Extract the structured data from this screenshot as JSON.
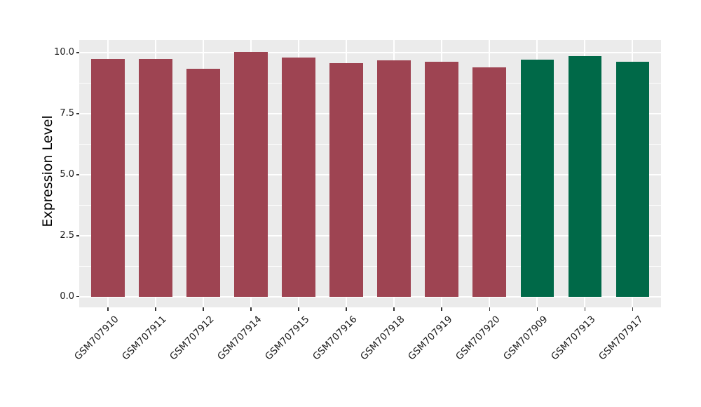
{
  "figure": {
    "background": "#ffffff",
    "panel_background": "#ebebeb",
    "grid_major_color": "#ffffff",
    "grid_minor_color": "#f7f7f7",
    "tick_color": "#333333",
    "text_color": "#1a1a1a"
  },
  "chart_data": {
    "type": "bar",
    "title": "",
    "xlabel": "",
    "ylabel": "Expression Level",
    "categories": [
      "GSM707910",
      "GSM707911",
      "GSM707912",
      "GSM707914",
      "GSM707915",
      "GSM707916",
      "GSM707918",
      "GSM707919",
      "GSM707920",
      "GSM707909",
      "GSM707913",
      "GSM707917"
    ],
    "values": [
      9.75,
      9.73,
      9.34,
      10.03,
      9.81,
      9.57,
      9.67,
      9.63,
      9.4,
      9.71,
      9.86,
      9.63
    ],
    "bar_colors": [
      "#9e4452",
      "#9e4452",
      "#9e4452",
      "#9e4452",
      "#9e4452",
      "#9e4452",
      "#9e4452",
      "#9e4452",
      "#9e4452",
      "#006948",
      "#006948",
      "#006948"
    ],
    "group_colors": {
      "first_nine": "#9e4452",
      "last_three": "#006948"
    },
    "ylim": [
      0,
      10.5
    ],
    "yticks": [
      0,
      2.5,
      5,
      7.5,
      10
    ],
    "ytick_labels": [
      "0.0",
      "2.5",
      "5.0",
      "7.5",
      "10.0"
    ],
    "yticks_minor": [
      1.25,
      3.75,
      6.25,
      8.75
    ],
    "grid": true,
    "legend": false,
    "x_label_rotation_deg": 45
  }
}
